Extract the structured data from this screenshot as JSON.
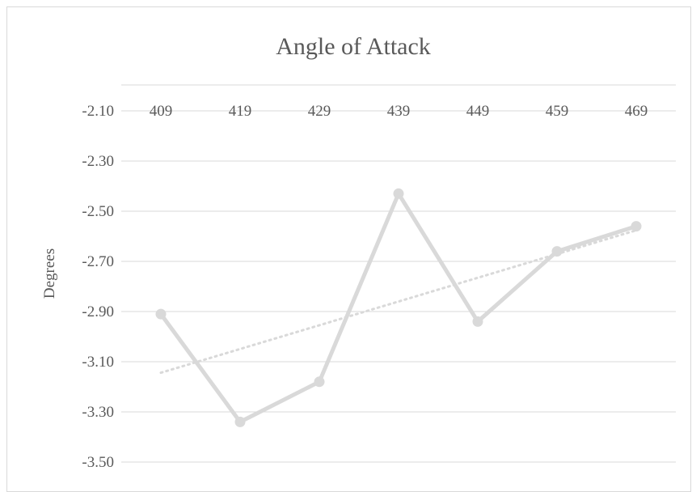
{
  "chart_data": {
    "type": "line",
    "title": "Angle of Attack",
    "ylabel": "Degrees",
    "xlabel": "",
    "categories": [
      "409",
      "419",
      "429",
      "439",
      "449",
      "459",
      "469"
    ],
    "series": [
      {
        "values": [
          -2.91,
          -3.34,
          -3.18,
          -2.43,
          -2.94,
          -2.66,
          -2.56
        ]
      }
    ],
    "trendline": {
      "type": "linear",
      "style": "dotted"
    },
    "y_ticks": [
      "-2.10",
      "-2.30",
      "-2.50",
      "-2.70",
      "-2.90",
      "-3.10",
      "-3.30",
      "-3.50"
    ],
    "ylim": [
      -3.5,
      -2.1
    ],
    "x_axis_position": "top",
    "gridlines": true,
    "colors": {
      "series": "#d9d9d9",
      "trend": "#d9d9d9",
      "grid": "#d9d9d9",
      "text": "#595959"
    }
  }
}
